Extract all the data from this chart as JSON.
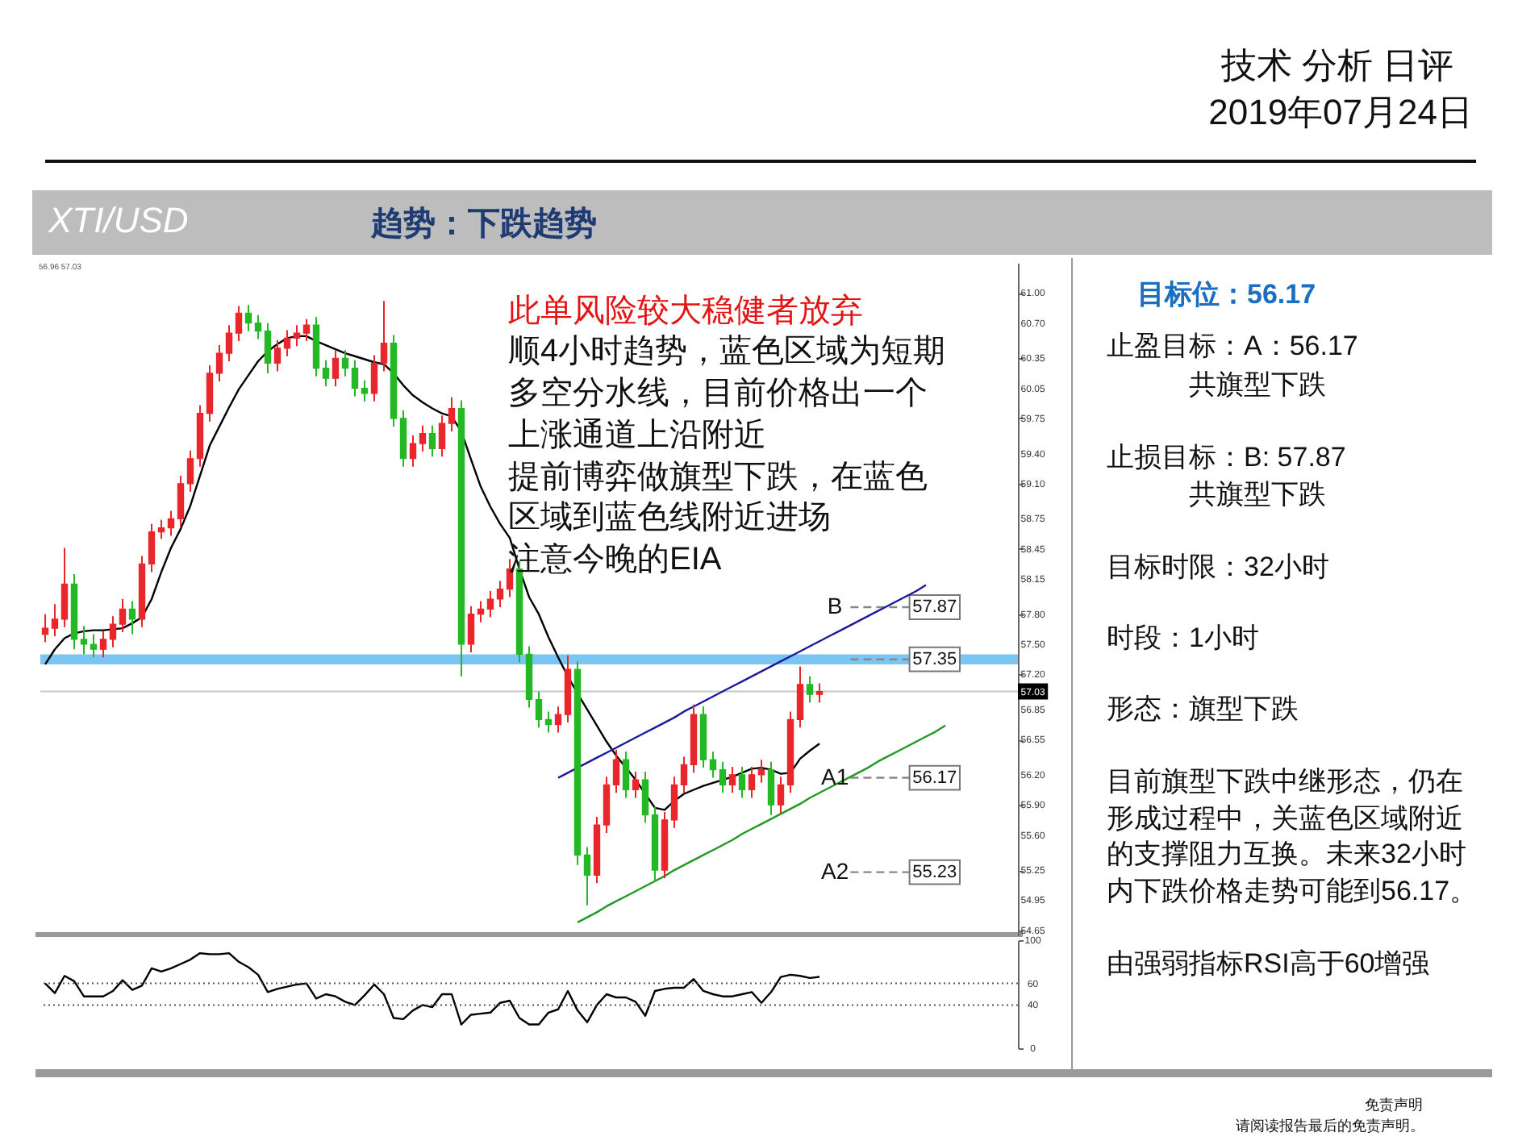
{
  "chart_data": [
    {
      "type": "candlestick",
      "title": "XTI/USD",
      "subtitle": "趋势：下跌趋势",
      "annotations": [
        "技术 分析 日评",
        "2019年07月24日",
        "56.96 57.03",
        "此单风险较大稳健者放弃",
        "顺4小时趋势，蓝色区域为短期",
        "多空分水线，目前价格出一个",
        "上涨通道上沿附近",
        "提前博弈做旗型下跌，在蓝色",
        "区域到蓝色线附近进场",
        "注意今晚的EIA",
        "免责声明",
        "请阅读报告最后的免责声明。",
        "B",
        "A1",
        "A2"
      ],
      "categories": [
        null,
        null,
        null,
        null,
        null,
        null,
        null,
        null,
        null,
        null,
        null,
        null,
        null,
        null,
        null,
        null,
        null,
        null,
        null,
        null,
        null,
        null,
        null,
        null,
        null,
        null,
        null,
        null,
        null,
        null,
        null,
        null,
        null,
        null,
        null,
        null,
        null,
        null,
        null,
        null,
        null,
        null,
        null,
        null,
        null,
        null,
        null,
        null,
        null,
        null,
        null,
        null,
        null,
        null,
        null,
        null,
        null,
        null,
        null,
        null,
        null,
        null,
        null,
        null,
        null,
        null,
        null,
        null,
        null,
        null,
        null,
        null,
        null,
        null,
        null,
        null,
        null,
        null,
        null,
        null,
        null,
        null,
        null,
        null,
        null,
        null,
        null,
        null,
        null,
        null,
        null,
        null,
        null,
        null,
        null,
        null,
        null,
        null,
        null,
        null,
        null
      ],
      "ohlc": [
        [
          57.6,
          57.8,
          57.52,
          57.66
        ],
        [
          57.66,
          57.9,
          57.58,
          57.75
        ],
        [
          57.75,
          58.46,
          57.67,
          58.1
        ],
        [
          58.1,
          58.2,
          57.45,
          57.55
        ],
        [
          57.55,
          57.68,
          57.4,
          57.5
        ],
        [
          57.5,
          57.6,
          57.37,
          57.45
        ],
        [
          57.45,
          57.63,
          57.37,
          57.55
        ],
        [
          57.55,
          57.78,
          57.47,
          57.7
        ],
        [
          57.7,
          57.95,
          57.62,
          57.85
        ],
        [
          57.85,
          57.93,
          57.6,
          57.75
        ],
        [
          57.75,
          58.38,
          57.67,
          58.3
        ],
        [
          58.3,
          58.7,
          58.22,
          58.62
        ],
        [
          58.62,
          58.74,
          58.55,
          58.66
        ],
        [
          58.66,
          58.83,
          58.58,
          58.75
        ],
        [
          58.75,
          59.18,
          58.67,
          59.1
        ],
        [
          59.1,
          59.43,
          59.02,
          59.35
        ],
        [
          59.35,
          59.88,
          59.27,
          59.8
        ],
        [
          59.8,
          60.28,
          59.72,
          60.2
        ],
        [
          60.2,
          60.48,
          60.12,
          60.4
        ],
        [
          60.4,
          60.68,
          60.32,
          60.6
        ],
        [
          60.6,
          60.87,
          60.52,
          60.8
        ],
        [
          60.8,
          60.88,
          60.62,
          60.7
        ],
        [
          60.7,
          60.78,
          60.54,
          60.62
        ],
        [
          60.62,
          60.7,
          60.2,
          60.3
        ],
        [
          60.3,
          60.53,
          60.22,
          60.45
        ],
        [
          60.45,
          60.63,
          60.37,
          60.55
        ],
        [
          60.55,
          60.68,
          60.47,
          60.6
        ],
        [
          60.6,
          60.74,
          60.52,
          60.68
        ],
        [
          60.68,
          60.76,
          60.17,
          60.25
        ],
        [
          60.25,
          60.33,
          60.07,
          60.15
        ],
        [
          60.15,
          60.43,
          60.07,
          60.35
        ],
        [
          60.35,
          60.43,
          60.17,
          60.25
        ],
        [
          60.25,
          60.33,
          59.97,
          60.05
        ],
        [
          60.05,
          60.13,
          59.92,
          60.0
        ],
        [
          60.0,
          60.38,
          59.92,
          60.3
        ],
        [
          60.3,
          60.92,
          60.22,
          60.5
        ],
        [
          60.5,
          60.58,
          59.67,
          59.75
        ],
        [
          59.75,
          59.83,
          59.27,
          59.35
        ],
        [
          59.35,
          59.58,
          59.27,
          59.5
        ],
        [
          59.5,
          59.68,
          59.42,
          59.6
        ],
        [
          59.6,
          59.68,
          59.37,
          59.45
        ],
        [
          59.45,
          59.78,
          59.37,
          59.7
        ],
        [
          59.7,
          59.96,
          59.62,
          59.85
        ],
        [
          59.85,
          59.93,
          57.18,
          57.5
        ],
        [
          57.5,
          57.88,
          57.42,
          57.8
        ],
        [
          57.8,
          57.93,
          57.72,
          57.85
        ],
        [
          57.85,
          58.03,
          57.77,
          57.95
        ],
        [
          57.95,
          58.13,
          57.87,
          58.05
        ],
        [
          58.05,
          58.35,
          57.97,
          58.25
        ],
        [
          58.25,
          58.33,
          57.32,
          57.4
        ],
        [
          57.4,
          57.48,
          56.87,
          56.95
        ],
        [
          56.95,
          57.03,
          56.67,
          56.75
        ],
        [
          56.75,
          56.83,
          56.62,
          56.7
        ],
        [
          56.7,
          56.88,
          56.62,
          56.8
        ],
        [
          56.8,
          57.39,
          56.72,
          57.25
        ],
        [
          57.25,
          57.33,
          55.3,
          55.4
        ],
        [
          55.4,
          55.48,
          54.9,
          55.2
        ],
        [
          55.2,
          55.78,
          55.12,
          55.7
        ],
        [
          55.7,
          56.18,
          55.62,
          56.1
        ],
        [
          56.1,
          56.45,
          56.02,
          56.35
        ],
        [
          56.35,
          56.43,
          55.97,
          56.05
        ],
        [
          56.05,
          56.23,
          55.97,
          56.15
        ],
        [
          56.15,
          56.23,
          55.72,
          55.8
        ],
        [
          55.8,
          55.88,
          55.14,
          55.25
        ],
        [
          55.25,
          55.83,
          55.17,
          55.75
        ],
        [
          55.75,
          56.18,
          55.67,
          56.1
        ],
        [
          56.1,
          56.38,
          56.02,
          56.3
        ],
        [
          56.3,
          56.9,
          56.22,
          56.8
        ],
        [
          56.8,
          56.88,
          56.27,
          56.35
        ],
        [
          56.35,
          56.43,
          56.17,
          56.25
        ],
        [
          56.25,
          56.33,
          56.02,
          56.1
        ],
        [
          56.1,
          56.28,
          56.02,
          56.2
        ],
        [
          56.2,
          56.28,
          55.97,
          56.05
        ],
        [
          56.05,
          56.28,
          55.97,
          56.2
        ],
        [
          56.2,
          56.35,
          56.12,
          56.25
        ],
        [
          56.25,
          56.33,
          55.8,
          55.9
        ],
        [
          55.9,
          56.18,
          55.82,
          56.1
        ],
        [
          56.1,
          56.83,
          56.02,
          56.75
        ],
        [
          56.75,
          57.28,
          56.67,
          57.1
        ],
        [
          57.1,
          57.18,
          56.92,
          57.0
        ],
        [
          57.0,
          57.11,
          56.92,
          57.03
        ],
        null,
        null,
        null,
        null,
        null,
        null,
        null,
        null,
        null,
        null,
        null,
        null,
        null,
        null,
        null,
        null,
        null,
        null,
        null,
        null
      ],
      "series": [
        {
          "type": "line",
          "color": "#000000",
          "values": [
            57.3,
            57.45,
            57.56,
            57.61,
            57.63,
            57.64,
            57.64,
            57.65,
            57.66,
            57.71,
            57.77,
            57.95,
            58.22,
            58.46,
            58.65,
            58.88,
            59.18,
            59.48,
            59.67,
            59.86,
            60.04,
            60.18,
            60.32,
            60.42,
            60.49,
            60.55,
            60.57,
            60.57,
            60.52,
            60.48,
            60.44,
            60.4,
            60.37,
            60.34,
            60.31,
            60.29,
            60.2,
            60.08,
            59.98,
            59.91,
            59.85,
            59.8,
            59.77,
            59.62,
            59.34,
            59.07,
            58.87,
            58.7,
            58.56,
            58.25,
            57.97,
            57.8,
            57.57,
            57.37,
            57.18,
            57.01,
            56.85,
            56.69,
            56.53,
            56.39,
            56.27,
            56.15,
            56.01,
            55.87,
            55.85,
            55.94,
            56.01,
            56.05,
            56.09,
            56.12,
            56.15,
            56.18,
            56.22,
            56.26,
            56.27,
            56.25,
            56.21,
            56.22,
            56.36,
            56.44,
            56.51,
            null,
            null,
            null,
            null,
            null,
            null,
            null,
            null,
            null,
            null,
            null,
            null,
            null,
            null,
            null,
            null,
            null,
            null,
            null,
            null
          ]
        },
        {
          "type": "line",
          "color": "#1a1a9c",
          "values": [
            null,
            null,
            null,
            null,
            null,
            null,
            null,
            null,
            null,
            null,
            null,
            null,
            null,
            null,
            null,
            null,
            null,
            null,
            null,
            null,
            null,
            null,
            null,
            null,
            null,
            null,
            null,
            null,
            null,
            null,
            null,
            null,
            null,
            null,
            null,
            null,
            null,
            null,
            null,
            null,
            null,
            null,
            null,
            null,
            null,
            null,
            null,
            null,
            null,
            null,
            null,
            null,
            null,
            56.17,
            56.22,
            56.27,
            56.32,
            56.37,
            56.42,
            56.47,
            56.52,
            56.57,
            56.62,
            56.67,
            56.72,
            56.77,
            56.83,
            56.88,
            56.93,
            56.98,
            57.03,
            57.08,
            57.13,
            57.18,
            57.23,
            57.28,
            57.33,
            57.38,
            57.43,
            57.48,
            57.53,
            57.58,
            57.63,
            57.68,
            57.73,
            57.78,
            57.83,
            57.88,
            57.93,
            57.98,
            58.03,
            58.09,
            null,
            null,
            null,
            null,
            null,
            null,
            null,
            null,
            null
          ]
        },
        {
          "type": "line",
          "color": "#1f9a1f",
          "values": [
            null,
            null,
            null,
            null,
            null,
            null,
            null,
            null,
            null,
            null,
            null,
            null,
            null,
            null,
            null,
            null,
            null,
            null,
            null,
            null,
            null,
            null,
            null,
            null,
            null,
            null,
            null,
            null,
            null,
            null,
            null,
            null,
            null,
            null,
            null,
            null,
            null,
            null,
            null,
            null,
            null,
            null,
            null,
            null,
            null,
            null,
            null,
            null,
            null,
            null,
            null,
            null,
            null,
            null,
            null,
            54.73,
            54.78,
            54.83,
            54.89,
            54.94,
            54.99,
            55.04,
            55.09,
            55.14,
            55.19,
            55.25,
            55.3,
            55.35,
            55.4,
            55.45,
            55.5,
            55.55,
            55.61,
            55.66,
            55.71,
            55.76,
            55.81,
            55.86,
            55.91,
            55.97,
            56.02,
            56.07,
            56.12,
            56.17,
            56.22,
            56.27,
            56.33,
            56.38,
            56.43,
            56.48,
            56.53,
            56.58,
            56.63,
            56.69,
            null,
            null,
            null,
            null,
            null,
            null,
            null
          ]
        }
      ],
      "ylim": [
        54.6,
        61.3
      ],
      "yticks": [
        {
          "value": 54.65,
          "label": "54.65"
        },
        {
          "value": 54.95,
          "label": "54.95"
        },
        {
          "value": 55.25,
          "label": "55.25"
        },
        {
          "value": 55.6,
          "label": "55.60"
        },
        {
          "value": 55.9,
          "label": "55.90"
        },
        {
          "value": 56.2,
          "label": "56.20"
        },
        {
          "value": 56.55,
          "label": "56.55"
        },
        {
          "value": 56.85,
          "label": "56.85"
        },
        {
          "value": 57.2,
          "label": "57.20"
        },
        {
          "value": 57.5,
          "label": "57.50"
        },
        {
          "value": 57.8,
          "label": "57.80"
        },
        {
          "value": 58.15,
          "label": "58.15"
        },
        {
          "value": 58.45,
          "label": "58.45"
        },
        {
          "value": 58.75,
          "label": "58.75"
        },
        {
          "value": 59.1,
          "label": "59.10"
        },
        {
          "value": 59.4,
          "label": "59.40"
        },
        {
          "value": 59.75,
          "label": "59.75"
        },
        {
          "value": 60.05,
          "label": "60.05"
        },
        {
          "value": 60.35,
          "label": "60.35"
        },
        {
          "value": 60.7,
          "label": "60.70"
        },
        {
          "value": 61,
          "label": "61.00"
        }
      ],
      "bands": [
        {
          "axis": "y",
          "from": 57.3,
          "to": 57.4,
          "color": "#7cc4f2"
        }
      ],
      "ref_lines": [
        {
          "axis": "y",
          "value": 57.03,
          "label": "57.03",
          "color": "#c8c8c8",
          "line_style": "solid"
        },
        {
          "axis": "y",
          "value": 57.87,
          "label": "57.87",
          "color": "#888888",
          "line_style": "dashed"
        },
        {
          "axis": "y",
          "value": 57.35,
          "label": "57.35",
          "color": "#888888",
          "line_style": "dashed"
        },
        {
          "axis": "y",
          "value": 56.17,
          "label": "56.17",
          "color": "#888888",
          "line_style": "dashed"
        },
        {
          "axis": "y",
          "value": 55.23,
          "label": "55.23",
          "color": "#888888",
          "line_style": "dashed"
        }
      ],
      "tick_labels": "y"
    },
    {
      "type": "line",
      "categories": [
        null,
        null,
        null,
        null,
        null,
        null,
        null,
        null,
        null,
        null,
        null,
        null,
        null,
        null,
        null,
        null,
        null,
        null,
        null,
        null,
        null,
        null,
        null,
        null,
        null,
        null,
        null,
        null,
        null,
        null,
        null,
        null,
        null,
        null,
        null,
        null,
        null,
        null,
        null,
        null,
        null,
        null,
        null,
        null,
        null,
        null,
        null,
        null,
        null,
        null,
        null,
        null,
        null,
        null,
        null,
        null,
        null,
        null,
        null,
        null,
        null,
        null,
        null,
        null,
        null,
        null,
        null,
        null,
        null,
        null,
        null,
        null,
        null,
        null,
        null,
        null,
        null,
        null,
        null,
        null,
        null,
        null,
        null,
        null,
        null,
        null,
        null,
        null,
        null,
        null,
        null,
        null,
        null,
        null,
        null,
        null,
        null,
        null,
        null,
        null,
        null
      ],
      "series": [
        {
          "color": "#000000",
          "values": [
            60,
            51,
            67,
            62,
            48,
            48,
            48,
            53,
            63,
            54,
            58,
            74,
            71,
            74,
            78,
            82,
            88,
            87,
            87,
            88,
            80,
            75,
            68,
            52,
            55,
            57,
            59,
            60,
            46,
            50,
            48,
            43,
            40,
            49,
            59,
            50,
            28,
            27,
            35,
            40,
            38,
            50,
            50,
            22,
            31,
            32,
            33,
            42,
            44,
            28,
            22,
            22,
            33,
            36,
            53,
            35,
            24,
            40,
            50,
            47,
            47,
            43,
            30,
            53,
            55,
            56,
            56,
            64,
            53,
            50,
            48,
            48,
            50,
            52,
            42,
            52,
            66,
            68,
            67,
            65,
            66,
            null,
            null,
            null,
            null,
            null,
            null,
            null,
            null,
            null,
            null,
            null,
            null,
            null,
            null,
            null,
            null,
            null,
            null,
            null,
            null
          ]
        }
      ],
      "ylim": [
        0,
        100
      ],
      "yticks": [
        0,
        40,
        60,
        100
      ],
      "ref_lines": [
        {
          "axis": "y",
          "value": 60,
          "label": null,
          "color": "#555555",
          "line_style": "dotted"
        },
        {
          "axis": "y",
          "value": 40,
          "label": null,
          "color": "#555555",
          "line_style": "dotted"
        }
      ],
      "tick_labels": "y"
    },
    {
      "type": "other",
      "title": "目标位：56.17",
      "annotations": [
        "止盈目标：A：56.17",
        "共旗型下跌",
        "止损目标：B: 57.87",
        "共旗型下跌",
        "目标时限：32小时",
        "时段：1小时",
        "形态：旗型下跌",
        "目前旗型下跌中继形态，仍在",
        "形成过程中，关蓝色区域附近",
        "的支撑阻力互换。未来32小时",
        "内下跌价格走势可能到56.17。",
        "由强弱指标RSI高于60增强"
      ]
    }
  ]
}
